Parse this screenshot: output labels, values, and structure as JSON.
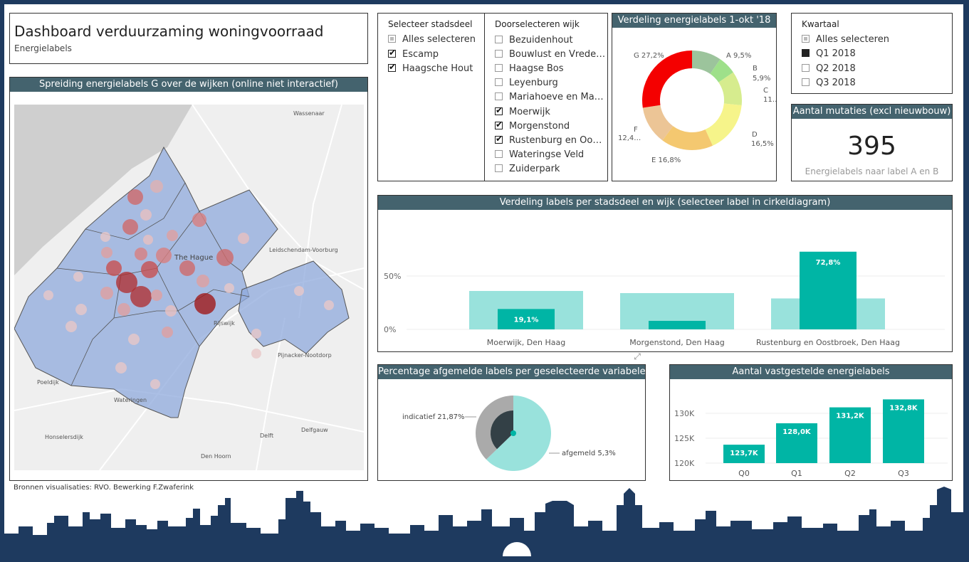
{
  "header": {
    "title": "Dashboard verduurzaming woningvoorraad",
    "subtitle": "Energielabels"
  },
  "map": {
    "title": "Spreiding energielabels G over de wijken (online niet interactief)",
    "places": [
      {
        "name": "Wassenaar"
      },
      {
        "name": "Leidschendam-Voorburg"
      },
      {
        "name": "The Hague"
      },
      {
        "name": "Rijswijk"
      },
      {
        "name": "Pijnacker-Nootdorp"
      },
      {
        "name": "Poeldijk"
      },
      {
        "name": "Wateringen"
      },
      {
        "name": "Honselersdijk"
      },
      {
        "name": "Delft"
      },
      {
        "name": "Delfgauw"
      },
      {
        "name": "Den Hoorn"
      }
    ]
  },
  "slicer_stadsdeel": {
    "title": "Selecteer stadsdeel",
    "items": [
      {
        "label": "Alles selecteren",
        "state": "partial"
      },
      {
        "label": "Escamp",
        "state": "checked"
      },
      {
        "label": "Haagsche Hout",
        "state": "checked"
      }
    ]
  },
  "slicer_wijk": {
    "title": "Doorselecteren wijk",
    "items": [
      {
        "label": "Bezuidenhout",
        "state": "none"
      },
      {
        "label": "Bouwlust en Vrede…",
        "state": "none"
      },
      {
        "label": "Haagse Bos",
        "state": "none"
      },
      {
        "label": "Leyenburg",
        "state": "none"
      },
      {
        "label": "Mariahoeve en Ma…",
        "state": "none"
      },
      {
        "label": "Moerwijk",
        "state": "checked"
      },
      {
        "label": "Morgenstond",
        "state": "checked"
      },
      {
        "label": "Rustenburg en Oo…",
        "state": "checked"
      },
      {
        "label": "Wateringse Veld",
        "state": "none"
      },
      {
        "label": "Zuiderpark",
        "state": "none"
      }
    ]
  },
  "donut": {
    "title": "Verdeling energielabels 1-okt '18",
    "chart_data": {
      "type": "pie",
      "categories": [
        "A",
        "B",
        "C",
        "D",
        "E",
        "F",
        "G"
      ],
      "values": [
        9.5,
        5.9,
        11.0,
        16.5,
        16.8,
        12.4,
        27.2
      ],
      "labels": [
        "A 9,5%",
        "B",
        "5,9%",
        "C",
        "11…",
        "D",
        "16,5%",
        "E 16,8%",
        "F",
        "12,4…",
        "G 27,2%"
      ],
      "colors": [
        "#9cc49c",
        "#9ee08a",
        "#d6ec8e",
        "#f6f48a",
        "#f4c870",
        "#ecc596",
        "#f40000"
      ]
    }
  },
  "kwartaal": {
    "title": "Kwartaal",
    "items": [
      {
        "label": "Alles selecteren",
        "state": "partial"
      },
      {
        "label": "Q1 2018",
        "state": "filled"
      },
      {
        "label": "Q2 2018",
        "state": "none"
      },
      {
        "label": "Q3 2018",
        "state": "none"
      }
    ]
  },
  "kpi": {
    "title": "Aantal mutaties (excl nieuwbouw)",
    "value": "395",
    "caption": "Energielabels naar label A en B"
  },
  "bar_wijk": {
    "title": "Verdeling labels per stadsdeel en wijk (selecteer label in cirkeldiagram)",
    "chart_data": {
      "type": "bar",
      "categories": [
        "Moerwijk, Den Haag",
        "Morgenstond, Den Haag",
        "Rustenburg en Oostbroek, Den Haag"
      ],
      "series": [
        {
          "values": [
            36,
            34,
            29
          ]
        },
        {
          "values": [
            19.1,
            8,
            72.8
          ]
        }
      ],
      "data_labels": [
        "19,1%",
        "",
        "72,8%"
      ],
      "yticks": [
        "0%",
        "50%"
      ],
      "ylim": [
        0,
        80
      ]
    }
  },
  "pie_afgemeld": {
    "title": "Percentage afgemelde labels per geselecteerde variabele",
    "chart_data": {
      "type": "pie",
      "labels": [
        "indicatief 21,87%",
        "afgemeld 5,3%"
      ],
      "values": [
        21.87,
        5.3
      ]
    }
  },
  "bar_quarter": {
    "title": "Aantal vastgestelde energielabels",
    "chart_data": {
      "type": "bar",
      "categories": [
        "Q0",
        "Q1",
        "Q2",
        "Q3"
      ],
      "values": [
        123.7,
        128.0,
        131.2,
        132.8
      ],
      "data_labels": [
        "123,7K",
        "128,0K",
        "131,2K",
        "132,8K"
      ],
      "yticks": [
        "120K",
        "125K",
        "130K"
      ],
      "ylim": [
        120,
        134
      ]
    }
  },
  "footer": {
    "source": "Bronnen visualisaties: RVO. Bewerking F.Zwaferink"
  },
  "colors": {
    "teal": "#00b5a5",
    "teal_light": "#99e2dc",
    "header": "#44636e",
    "navy": "#1e3a5f"
  }
}
